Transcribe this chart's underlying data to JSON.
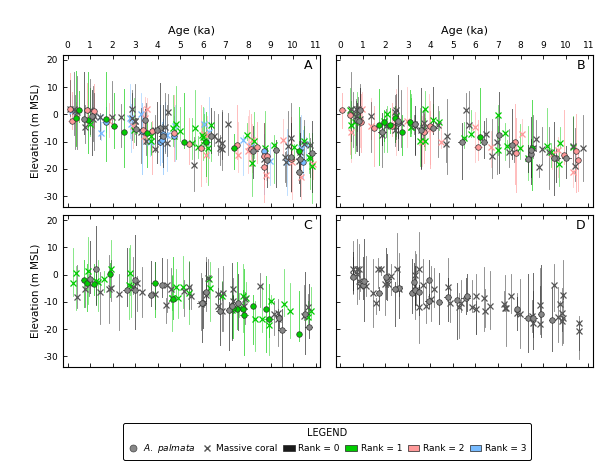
{
  "ylabel": "Elevation (m MSL)",
  "xlabel_top": "Age (ka)",
  "xlim": [
    -0.2,
    11.2
  ],
  "ylim": [
    -34,
    22
  ],
  "xticks": [
    0,
    1,
    2,
    3,
    4,
    5,
    6,
    7,
    8,
    9,
    10,
    11
  ],
  "yticks": [
    -30,
    -20,
    -10,
    0,
    10,
    20
  ],
  "panel_labels": [
    "A",
    "B",
    "C",
    "D"
  ],
  "rank_colors": {
    "0": "#1a1a1a",
    "1": "#00cc00",
    "2": "#ff9999",
    "3": "#77bbff"
  },
  "palmata_face_rank0": "#888888",
  "legend_title": "LEGEND",
  "n_points": {
    "A_palm": 50,
    "A_mass": 100,
    "B_palm": 40,
    "B_mass": 80,
    "C_palm": 32,
    "C_mass": 65,
    "D_palm": 24,
    "D_mass": 55
  },
  "seeds": [
    7,
    13,
    19,
    31
  ]
}
